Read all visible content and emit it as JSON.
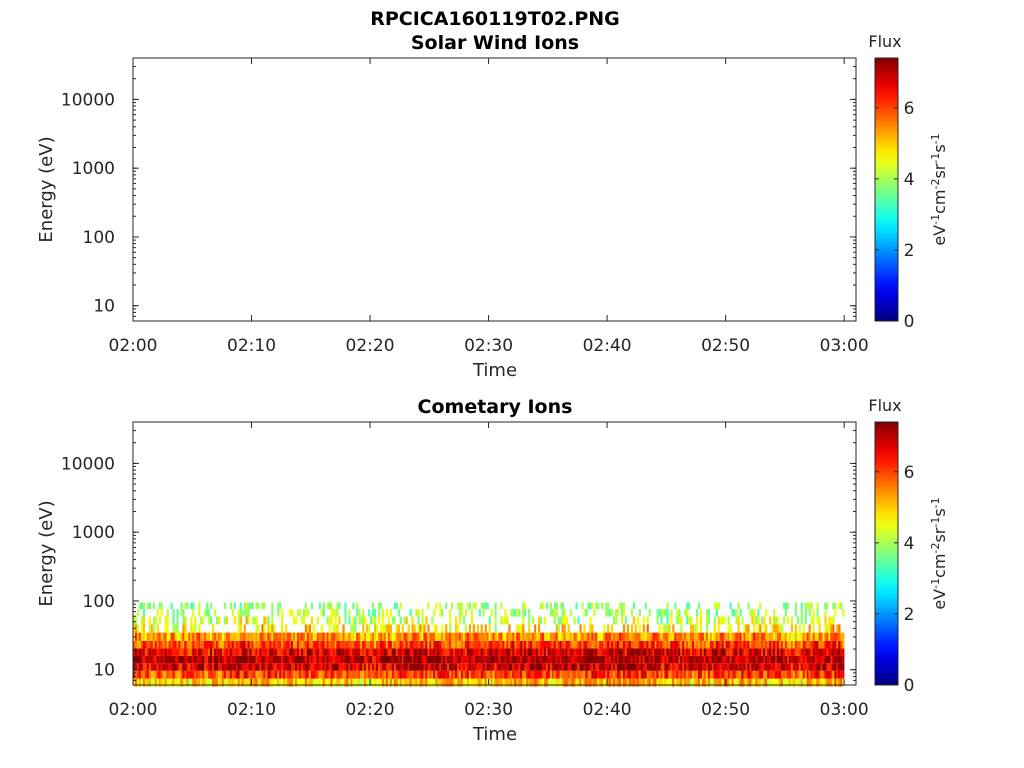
{
  "figure": {
    "title": "RPCICA160119T02.PNG"
  },
  "colorbar": {
    "title": "Flux",
    "label": "eV",
    "label_parts": [
      "eV",
      "-1",
      "cm",
      "-2",
      "sr",
      "-1",
      "s",
      "-1"
    ],
    "range": [
      0,
      7.4
    ],
    "ticks": [
      "0",
      "2",
      "4",
      "6"
    ],
    "colormap": "jet"
  },
  "chart_data": [
    {
      "type": "heatmap",
      "title": "Solar Wind Ions",
      "xlabel": "Time",
      "ylabel": "Energy (eV)",
      "x_ticks": [
        "02:00",
        "02:10",
        "02:20",
        "02:30",
        "02:40",
        "02:50",
        "03:00"
      ],
      "xlim": [
        "02:00",
        "03:01"
      ],
      "y_scale": "log",
      "y_ticks": [
        "10",
        "100",
        "1000",
        "10000"
      ],
      "ylim": [
        6,
        40000
      ],
      "cells": []
    },
    {
      "type": "heatmap",
      "title": "Cometary Ions",
      "xlabel": "Time",
      "ylabel": "Energy (eV)",
      "x_ticks": [
        "02:00",
        "02:10",
        "02:20",
        "02:30",
        "02:40",
        "02:50",
        "03:00"
      ],
      "xlim": [
        "02:00",
        "03:01"
      ],
      "y_scale": "log",
      "y_ticks": [
        "10",
        "100",
        "1000",
        "10000"
      ],
      "ylim": [
        6,
        40000
      ],
      "time_range": [
        "02:00",
        "03:00"
      ],
      "energy_bins": [
        6.5,
        8.5,
        11,
        14,
        18,
        23,
        30,
        40,
        52,
        68,
        85
      ],
      "flux_profile": [
        5.0,
        6.0,
        6.8,
        7.0,
        6.7,
        6.0,
        5.4,
        4.8,
        4.2,
        3.8,
        3.6
      ],
      "flux_max": 7.4,
      "cells": []
    }
  ]
}
